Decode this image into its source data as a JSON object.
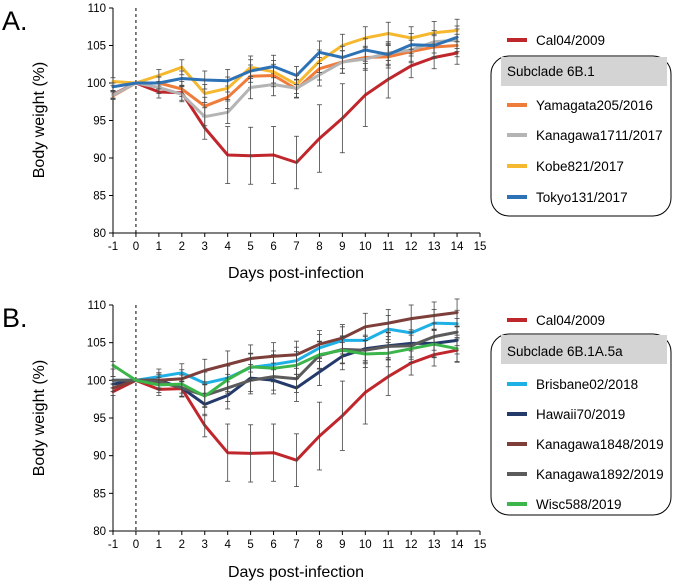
{
  "chart_data": [
    {
      "type": "line",
      "panel_label": "A.",
      "xlabel": "Days post-infection",
      "ylabel": "Body weight (%)",
      "xlim": [
        -1,
        15
      ],
      "ylim": [
        80,
        110
      ],
      "xticks": [
        "-1",
        "0",
        "1",
        "2",
        "3",
        "4",
        "5",
        "6",
        "7",
        "8",
        "9",
        "10",
        "11",
        "12",
        "13",
        "14",
        "15"
      ],
      "yticks": [
        "80",
        "85",
        "90",
        "95",
        "100",
        "105",
        "110"
      ],
      "infection_day_marker": 0,
      "x": [
        -1,
        0,
        1,
        2,
        3,
        4,
        5,
        6,
        7,
        8,
        9,
        10,
        11,
        12,
        13,
        14
      ],
      "reference_series_label": "Cal04/2009",
      "group_label": "Subclade 6B.1",
      "series": [
        {
          "name": "Cal04/2009",
          "color": "#c0272d",
          "values": [
            98.5,
            100,
            98.8,
            98.7,
            94.0,
            90.4,
            90.3,
            90.4,
            89.4,
            92.6,
            95.3,
            98.4,
            100.5,
            102.3,
            103.4,
            104.0
          ],
          "errors": [
            0.5,
            0,
            0.8,
            1.0,
            1.5,
            3.8,
            3.8,
            3.8,
            3.5,
            4.5,
            4.6,
            4.2,
            2.5,
            1.6,
            1.5,
            1.5
          ]
        },
        {
          "name": "Yamagata205/2016",
          "color": "#f07c3c",
          "values": [
            98.3,
            100,
            100.0,
            99.2,
            96.9,
            98.1,
            100.9,
            101.0,
            99.2,
            101.9,
            102.8,
            103.4,
            103.5,
            104.2,
            104.8,
            105.0
          ],
          "errors": [
            0.5,
            0,
            0.8,
            1.0,
            1.2,
            1.5,
            1.5,
            1.5,
            1.2,
            1.5,
            1.5,
            1.5,
            1.5,
            1.5,
            1.5,
            1.5
          ]
        },
        {
          "name": "Kanagawa1711/2017",
          "color": "#b4b4b4",
          "values": [
            98.4,
            100,
            99.4,
            98.5,
            95.5,
            96.1,
            99.4,
            99.8,
            99.3,
            101.1,
            102.8,
            103.2,
            104.0,
            104.4,
            105.5,
            105.7
          ],
          "errors": [
            0.5,
            0,
            0.8,
            1.0,
            1.2,
            1.5,
            1.5,
            1.5,
            1.2,
            1.5,
            1.5,
            1.5,
            1.5,
            1.5,
            1.5,
            1.5
          ]
        },
        {
          "name": "Kobe821/2017",
          "color": "#f5b82e",
          "values": [
            100.2,
            100,
            101.0,
            102.1,
            98.6,
            99.3,
            102.1,
            101.5,
            99.8,
            102.9,
            105.0,
            106.0,
            106.6,
            106.0,
            106.7,
            107.0
          ],
          "errors": [
            0.5,
            0,
            0.8,
            1.0,
            1.2,
            1.5,
            1.5,
            1.5,
            1.2,
            1.5,
            1.5,
            1.5,
            1.5,
            1.5,
            1.5,
            1.5
          ]
        },
        {
          "name": "Tokyo131/2017",
          "color": "#2e72b6",
          "values": [
            99.5,
            100,
            100.0,
            100.6,
            100.4,
            100.3,
            101.6,
            102.2,
            101.0,
            104.1,
            103.4,
            104.4,
            103.8,
            105.1,
            105.0,
            106.1
          ],
          "errors": [
            0.5,
            0,
            0.8,
            1.0,
            1.2,
            1.5,
            1.5,
            1.5,
            1.2,
            1.5,
            1.5,
            1.5,
            1.5,
            1.5,
            1.5,
            1.5
          ]
        }
      ]
    },
    {
      "type": "line",
      "panel_label": "B.",
      "xlabel": "Days post-infection",
      "ylabel": "Body weight (%)",
      "xlim": [
        -1,
        15
      ],
      "ylim": [
        80,
        110
      ],
      "xticks": [
        "-1",
        "0",
        "1",
        "2",
        "3",
        "4",
        "5",
        "6",
        "7",
        "8",
        "9",
        "10",
        "11",
        "12",
        "13",
        "14",
        "15"
      ],
      "yticks": [
        "80",
        "85",
        "90",
        "95",
        "100",
        "105",
        "110"
      ],
      "infection_day_marker": 0,
      "x": [
        -1,
        0,
        1,
        2,
        3,
        4,
        5,
        6,
        7,
        8,
        9,
        10,
        11,
        12,
        13,
        14
      ],
      "reference_series_label": "Cal04/2009",
      "group_label": "Subclade 6B.1A.5a",
      "series": [
        {
          "name": "Cal04/2009",
          "color": "#c0272d",
          "values": [
            98.5,
            100,
            98.8,
            98.9,
            94.0,
            90.4,
            90.3,
            90.4,
            89.4,
            92.6,
            95.3,
            98.4,
            100.5,
            102.3,
            103.4,
            104.0
          ],
          "errors": [
            0.5,
            0,
            0.8,
            1.0,
            1.5,
            3.8,
            3.8,
            3.8,
            3.5,
            4.5,
            4.6,
            4.2,
            2.5,
            1.6,
            1.5,
            1.5
          ]
        },
        {
          "name": "Brisbane02/2018",
          "color": "#1fb1e6",
          "values": [
            100.0,
            100,
            100.5,
            101.0,
            99.6,
            100.3,
            101.7,
            102.1,
            102.6,
            104.3,
            105.3,
            105.3,
            106.8,
            106.3,
            107.6,
            107.5
          ],
          "errors": [
            0.5,
            0,
            1.0,
            1.2,
            1.5,
            1.8,
            1.8,
            1.8,
            1.8,
            1.8,
            1.8,
            1.8,
            1.8,
            1.8,
            1.8,
            1.8
          ]
        },
        {
          "name": "Hawaii70/2019",
          "color": "#243a6b",
          "values": [
            99.5,
            100,
            100.0,
            99.0,
            96.8,
            98.0,
            100.3,
            100.0,
            99.0,
            101.1,
            103.2,
            104.2,
            104.6,
            104.9,
            104.9,
            105.3
          ],
          "errors": [
            0.5,
            0,
            1.0,
            1.2,
            1.5,
            1.8,
            1.8,
            1.8,
            1.8,
            1.8,
            1.8,
            1.8,
            1.8,
            1.8,
            1.8,
            1.8
          ]
        },
        {
          "name": "Kanagawa1848/2019",
          "color": "#7e3f3a",
          "values": [
            99.0,
            100,
            100.0,
            100.2,
            101.3,
            102.1,
            102.9,
            103.2,
            103.4,
            104.8,
            105.6,
            107.1,
            107.6,
            108.2,
            108.6,
            109.0
          ],
          "errors": [
            0.5,
            0,
            1.0,
            1.2,
            1.5,
            1.8,
            1.8,
            1.8,
            1.8,
            1.8,
            1.8,
            1.8,
            1.8,
            1.8,
            1.8,
            1.8
          ]
        },
        {
          "name": "Kanagawa1892/2019",
          "color": "#5b5b5b",
          "values": [
            100.0,
            100,
            99.8,
            99.0,
            98.0,
            99.0,
            100.0,
            100.5,
            100.2,
            103.3,
            104.1,
            104.0,
            104.5,
            104.6,
            105.8,
            106.4
          ],
          "errors": [
            0.5,
            0,
            1.0,
            1.2,
            1.5,
            1.8,
            1.8,
            1.8,
            1.8,
            1.8,
            1.8,
            1.8,
            1.8,
            1.8,
            1.8,
            1.8
          ]
        },
        {
          "name": "Wisc588/2019",
          "color": "#3cb54a",
          "values": [
            102.0,
            100,
            99.4,
            99.5,
            97.9,
            100.1,
            101.8,
            101.6,
            102.0,
            103.4,
            104.0,
            103.5,
            103.6,
            104.2,
            104.8,
            104.2
          ],
          "errors": [
            0.5,
            0,
            1.0,
            1.2,
            1.5,
            1.8,
            1.8,
            1.8,
            1.8,
            1.8,
            1.8,
            1.8,
            1.8,
            1.8,
            1.8,
            1.8
          ]
        }
      ]
    }
  ]
}
